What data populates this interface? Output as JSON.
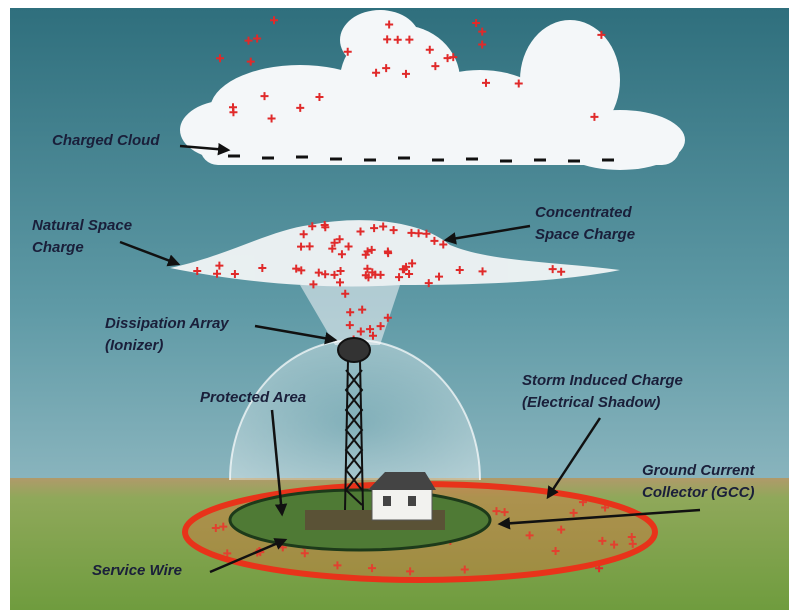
{
  "labels": [
    {
      "lines": [
        "Charged Cloud"
      ]
    },
    {
      "lines": [
        "Natural Space",
        "Charge"
      ]
    },
    {
      "lines": [
        "Concentrated",
        "Space Charge"
      ]
    },
    {
      "lines": [
        "Dissipation Array",
        "(Ionizer)"
      ]
    },
    {
      "lines": [
        "Protected Area"
      ]
    },
    {
      "lines": [
        "Storm Induced Charge",
        "(Electrical Shadow)"
      ]
    },
    {
      "lines": [
        "Ground Current",
        "Collector (GCC)"
      ]
    },
    {
      "lines": [
        "Service Wire"
      ]
    }
  ]
}
